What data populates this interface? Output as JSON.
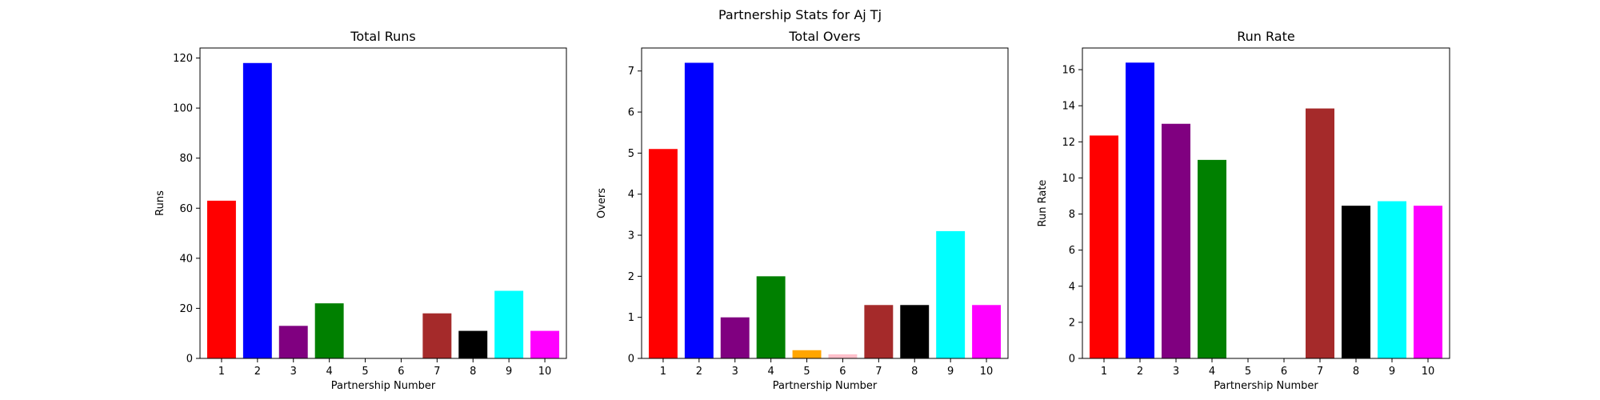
{
  "figure": {
    "suptitle": "Partnership Stats for Aj Tj"
  },
  "chart_data": [
    {
      "type": "bar",
      "title": "Total Runs",
      "xlabel": "Partnership Number",
      "ylabel": "Runs",
      "categories": [
        "1",
        "2",
        "3",
        "4",
        "5",
        "6",
        "7",
        "8",
        "9",
        "10"
      ],
      "values": [
        63,
        118,
        13,
        22,
        0,
        0,
        18,
        11,
        27,
        11
      ],
      "colors": [
        "#ff0000",
        "#0000ff",
        "#800080",
        "#008000",
        "#ffa500",
        "#ffc0cb",
        "#a52a2a",
        "#000000",
        "#00ffff",
        "#ff00ff"
      ],
      "ylim": [
        0,
        124
      ],
      "yticks": [
        0,
        20,
        40,
        60,
        80,
        100,
        120
      ],
      "grid": false,
      "legend": "none"
    },
    {
      "type": "bar",
      "title": "Total Overs",
      "xlabel": "Partnership Number",
      "ylabel": "Overs",
      "categories": [
        "1",
        "2",
        "3",
        "4",
        "5",
        "6",
        "7",
        "8",
        "9",
        "10"
      ],
      "values": [
        5.1,
        7.2,
        1.0,
        2.0,
        0.2,
        0.1,
        1.3,
        1.3,
        3.1,
        1.3
      ],
      "colors": [
        "#ff0000",
        "#0000ff",
        "#800080",
        "#008000",
        "#ffa500",
        "#ffc0cb",
        "#a52a2a",
        "#000000",
        "#00ffff",
        "#ff00ff"
      ],
      "ylim": [
        0,
        7.56
      ],
      "yticks": [
        0,
        1,
        2,
        3,
        4,
        5,
        6,
        7
      ],
      "grid": false,
      "legend": "none"
    },
    {
      "type": "bar",
      "title": "Run Rate",
      "xlabel": "Partnership Number",
      "ylabel": "Run Rate",
      "categories": [
        "1",
        "2",
        "3",
        "4",
        "5",
        "6",
        "7",
        "8",
        "9",
        "10"
      ],
      "values": [
        12.35,
        16.39,
        13.0,
        11.0,
        0,
        0,
        13.85,
        8.46,
        8.71,
        8.46
      ],
      "colors": [
        "#ff0000",
        "#0000ff",
        "#800080",
        "#008000",
        "#ffa500",
        "#ffc0cb",
        "#a52a2a",
        "#000000",
        "#00ffff",
        "#ff00ff"
      ],
      "ylim": [
        0,
        17.2
      ],
      "yticks": [
        0,
        2,
        4,
        6,
        8,
        10,
        12,
        14,
        16
      ],
      "grid": false,
      "legend": "none"
    }
  ]
}
